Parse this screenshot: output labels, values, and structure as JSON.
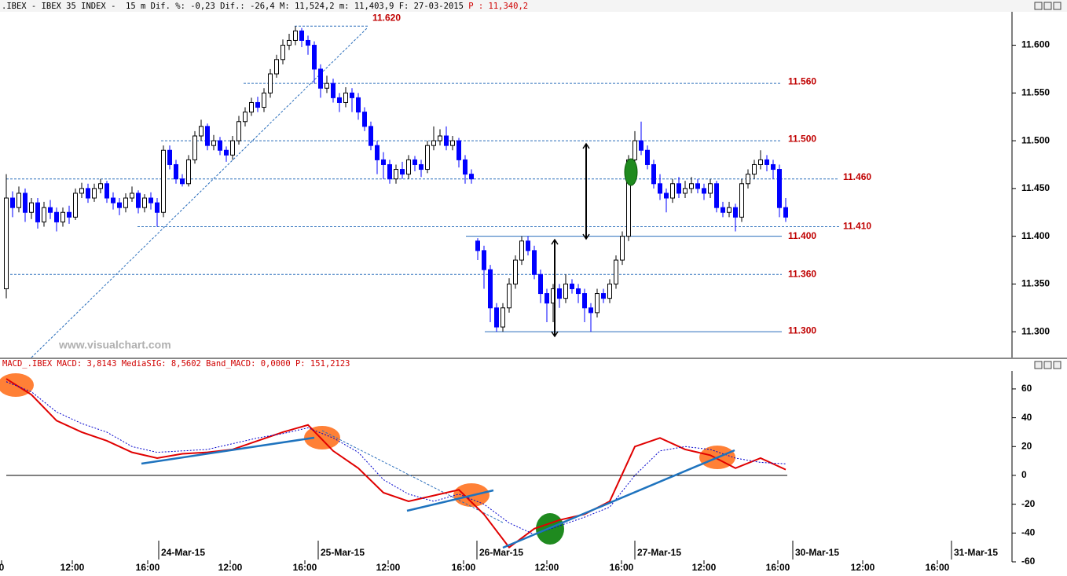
{
  "header": {
    "text": ".IBEX - IBEX 35 INDEX -  15 m Dif. %: -0,23 Dif.: -26,4 M: 11,524,2 m: 11,403,9 F: 27-03-2015 ",
    "price": "P : 11,340,2"
  },
  "watermark": "www.visualchart.com",
  "x_axis": {
    "dates": [
      "24-Mar-15",
      "25-Mar-15",
      "26-Mar-15",
      "27-Mar-15",
      "30-Mar-15",
      "31-Mar-15"
    ],
    "times": [
      "0",
      "12:00",
      "16:00",
      "12:00",
      "16:00",
      "12:00",
      "16:00",
      "12:00",
      "16:00",
      "12:00",
      "16:00",
      "12:00",
      "16:00"
    ]
  },
  "chart_data": [
    {
      "type": "candlestick",
      "up_color": "#ffffff",
      "down_color": "#0000ff",
      "open": [
        11345,
        11440,
        11430,
        11445,
        11425,
        11435,
        11415,
        11430,
        11425,
        11415,
        11425,
        11420,
        11445,
        11450,
        11440,
        11450,
        11455,
        11440,
        11435,
        11430,
        11440,
        11445,
        11430,
        11440,
        11435,
        11425,
        11490,
        11475,
        11460,
        11455,
        11480,
        11505,
        11515,
        11495,
        11500,
        11490,
        11485,
        11500,
        11520,
        11530,
        11540,
        11535,
        11550,
        11570,
        11585,
        11600,
        11605,
        11615,
        11605,
        11600,
        11575,
        11555,
        11560,
        11545,
        11540,
        11550,
        11545,
        11530,
        11515,
        11495,
        11480,
        11475,
        11460,
        11470,
        11465,
        11480,
        11475,
        11470,
        11495,
        11500,
        11505,
        11495,
        11500,
        11480,
        11465,
        11395,
        11385,
        11365,
        11325,
        11305,
        11325,
        11350,
        11375,
        11395,
        11385,
        11360,
        11340,
        11330,
        11345,
        11335,
        11350,
        11345,
        11340,
        11325,
        11320,
        11340,
        11335,
        11350,
        11375,
        11400,
        11480,
        11500,
        11490,
        11475,
        11455,
        11445,
        11440,
        11455,
        11445,
        11450,
        11455,
        11450,
        11445,
        11455,
        11430,
        11425,
        11430,
        11420,
        11455,
        11465,
        11475,
        11480,
        11475,
        11470,
        11430
      ],
      "high": [
        11465,
        11447,
        11452,
        11450,
        11440,
        11440,
        11436,
        11438,
        11430,
        11430,
        11432,
        11450,
        11456,
        11455,
        11455,
        11460,
        11458,
        11446,
        11440,
        11445,
        11452,
        11448,
        11444,
        11446,
        11440,
        11495,
        11495,
        11480,
        11465,
        11485,
        11510,
        11522,
        11518,
        11506,
        11504,
        11494,
        11505,
        11526,
        11535,
        11545,
        11546,
        11555,
        11575,
        11590,
        11606,
        11612,
        11620,
        11618,
        11610,
        11604,
        11580,
        11568,
        11565,
        11550,
        11556,
        11555,
        11550,
        11535,
        11520,
        11500,
        11488,
        11480,
        11475,
        11478,
        11485,
        11484,
        11480,
        11500,
        11515,
        11512,
        11515,
        11505,
        11503,
        11485,
        11470,
        11398,
        11390,
        11370,
        11330,
        11330,
        11356,
        11380,
        11400,
        11400,
        11390,
        11365,
        11345,
        11350,
        11350,
        11360,
        11355,
        11350,
        11345,
        11330,
        11345,
        11345,
        11355,
        11380,
        11405,
        11485,
        11510,
        11520,
        11495,
        11480,
        11465,
        11450,
        11460,
        11462,
        11458,
        11462,
        11460,
        11455,
        11460,
        11458,
        11436,
        11436,
        11434,
        11460,
        11470,
        11480,
        11490,
        11485,
        11480,
        11475,
        11440
      ],
      "low": [
        11335,
        11420,
        11425,
        11415,
        11418,
        11408,
        11410,
        11418,
        11405,
        11410,
        11413,
        11417,
        11440,
        11435,
        11436,
        11445,
        11435,
        11428,
        11422,
        11425,
        11436,
        11424,
        11425,
        11428,
        11410,
        11420,
        11470,
        11455,
        11452,
        11452,
        11476,
        11500,
        11490,
        11490,
        11485,
        11478,
        11480,
        11496,
        11515,
        11526,
        11530,
        11530,
        11545,
        11566,
        11580,
        11595,
        11600,
        11598,
        11590,
        11560,
        11545,
        11550,
        11540,
        11530,
        11535,
        11530,
        11522,
        11510,
        11490,
        11465,
        11460,
        11455,
        11455,
        11460,
        11460,
        11468,
        11462,
        11466,
        11490,
        11495,
        11490,
        11490,
        11472,
        11455,
        11455,
        11375,
        11345,
        11310,
        11300,
        11300,
        11320,
        11345,
        11370,
        11380,
        11355,
        11330,
        11310,
        11310,
        11325,
        11330,
        11340,
        11330,
        11310,
        11300,
        11315,
        11330,
        11330,
        11345,
        11370,
        11395,
        11475,
        11485,
        11470,
        11450,
        11438,
        11425,
        11435,
        11440,
        11440,
        11445,
        11445,
        11438,
        11440,
        11425,
        11420,
        11420,
        11405,
        11415,
        11450,
        11460,
        11470,
        11468,
        11460,
        11420,
        11415
      ],
      "close": [
        11440,
        11430,
        11445,
        11425,
        11435,
        11415,
        11430,
        11425,
        11415,
        11425,
        11420,
        11445,
        11450,
        11440,
        11450,
        11455,
        11440,
        11435,
        11430,
        11440,
        11445,
        11430,
        11440,
        11435,
        11425,
        11490,
        11475,
        11460,
        11455,
        11480,
        11505,
        11515,
        11495,
        11500,
        11490,
        11485,
        11500,
        11520,
        11530,
        11540,
        11535,
        11550,
        11570,
        11585,
        11600,
        11605,
        11615,
        11605,
        11600,
        11575,
        11555,
        11560,
        11545,
        11540,
        11550,
        11545,
        11530,
        11515,
        11495,
        11480,
        11475,
        11460,
        11470,
        11465,
        11480,
        11475,
        11470,
        11495,
        11500,
        11505,
        11495,
        11500,
        11480,
        11465,
        11460,
        11385,
        11365,
        11325,
        11305,
        11325,
        11350,
        11375,
        11395,
        11385,
        11360,
        11340,
        11330,
        11345,
        11335,
        11350,
        11345,
        11340,
        11325,
        11320,
        11340,
        11335,
        11350,
        11375,
        11400,
        11480,
        11500,
        11490,
        11475,
        11455,
        11445,
        11440,
        11455,
        11445,
        11450,
        11455,
        11450,
        11445,
        11455,
        11430,
        11425,
        11430,
        11420,
        11455,
        11465,
        11475,
        11480,
        11475,
        11470,
        11430,
        11420
      ],
      "ylim": [
        11273,
        11635
      ],
      "yticks": [
        {
          "value": 11300,
          "label": "11.300"
        },
        {
          "value": 11350,
          "label": "11.350"
        },
        {
          "value": 11400,
          "label": "11.400"
        },
        {
          "value": 11450,
          "label": "11.450"
        },
        {
          "value": 11500,
          "label": "11.500"
        },
        {
          "value": 11550,
          "label": "11.550"
        },
        {
          "value": 11600,
          "label": "11.600"
        }
      ],
      "levels": [
        {
          "value": 11620,
          "label": "11.620",
          "style": "dashed"
        },
        {
          "value": 11560,
          "label": "11.560",
          "style": "dashed"
        },
        {
          "value": 11500,
          "label": "11.500",
          "style": "dashed"
        },
        {
          "value": 11460,
          "label": "11.460",
          "style": "dashed"
        },
        {
          "value": 11410,
          "label": "11.410",
          "style": "dashed"
        },
        {
          "value": 11400,
          "label": "11.400",
          "style": "solid"
        },
        {
          "value": 11360,
          "label": "11.360",
          "style": "dashed"
        },
        {
          "value": 11300,
          "label": "11.300",
          "style": "solid"
        }
      ]
    },
    {
      "type": "line",
      "title": "MACD_.IBEX MACD: 3,8143 MediaSIG: 8,5602 Band_MACD: 0,0000 P: 151,2123",
      "series": [
        {
          "color": "#e00000",
          "values": [
            67,
            56,
            38,
            30,
            24,
            16,
            12,
            15,
            16,
            18,
            24,
            30,
            35,
            17,
            5,
            -12,
            -18,
            -14,
            -10,
            -27,
            -50,
            -37,
            -31,
            -27,
            -18,
            20,
            26,
            18,
            14,
            5,
            12,
            4
          ]
        },
        {
          "color": "#0000cc",
          "values": [
            65,
            58,
            44,
            36,
            30,
            20,
            16,
            17,
            18,
            22,
            26,
            29,
            33,
            26,
            16,
            -3,
            -13,
            -18,
            -13,
            -20,
            -33,
            -41,
            -35,
            -29,
            -22,
            0,
            17,
            20,
            18,
            12,
            9,
            8
          ]
        }
      ],
      "ylim": [
        -60,
        72.5
      ],
      "yticks": [
        60,
        40,
        20,
        0,
        -20,
        -40,
        -60
      ]
    }
  ]
}
